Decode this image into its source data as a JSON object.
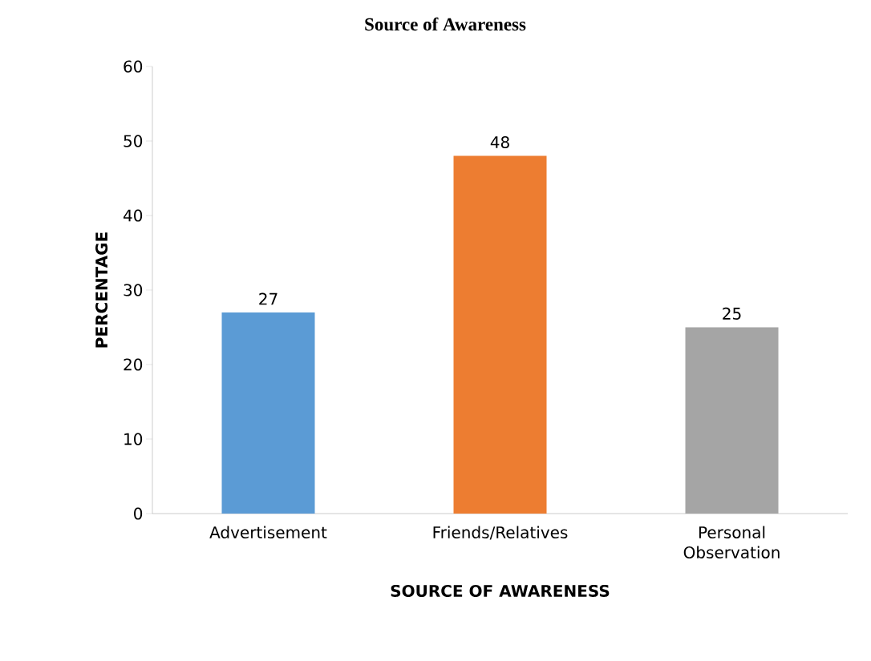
{
  "chart_data": {
    "type": "bar",
    "title": "Source of Awareness",
    "xlabel": "SOURCE OF AWARENESS",
    "ylabel": "PERCENTAGE",
    "categories": [
      "Advertisement",
      "Friends/Relatives",
      "Personal Observation"
    ],
    "values": [
      27,
      48,
      25
    ],
    "colors": [
      "#5b9bd5",
      "#ed7d31",
      "#a5a5a5"
    ],
    "ylim": [
      0,
      60
    ],
    "yticks": [
      0,
      10,
      20,
      30,
      40,
      50,
      60
    ],
    "grid": false,
    "data_labels": true
  }
}
